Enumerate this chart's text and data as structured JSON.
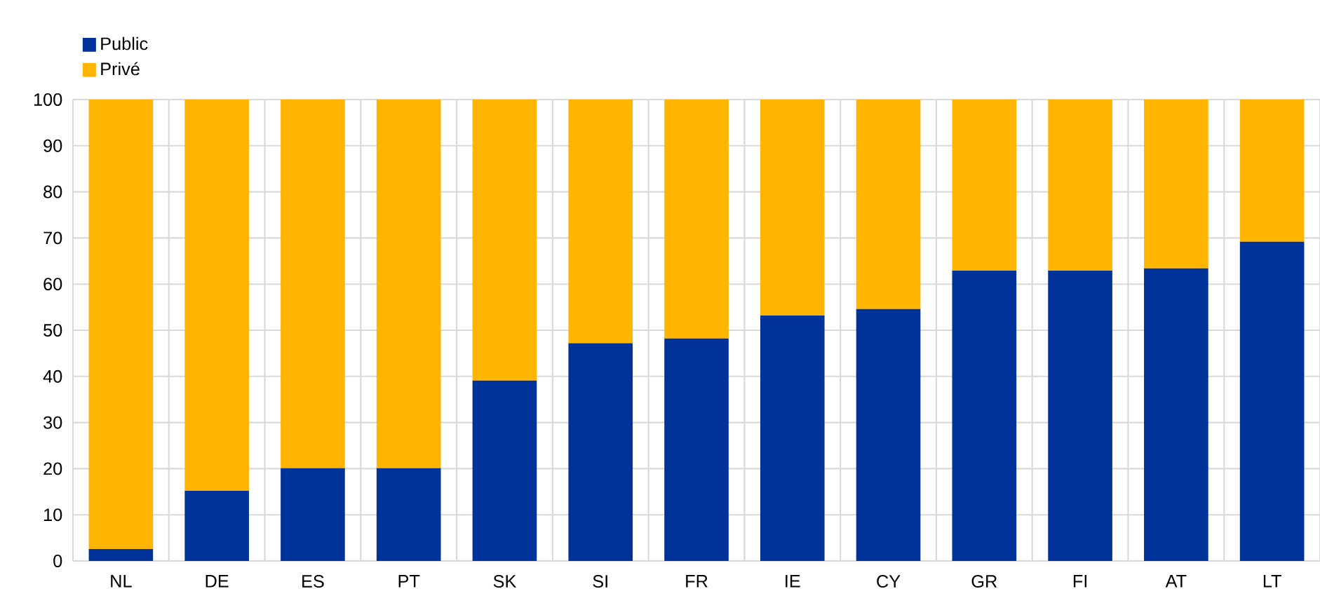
{
  "chart_data": {
    "type": "bar",
    "stacked": true,
    "categories": [
      "NL",
      "DE",
      "ES",
      "PT",
      "SK",
      "SI",
      "FR",
      "IE",
      "CY",
      "GR",
      "FI",
      "AT",
      "LT"
    ],
    "series": [
      {
        "name": "Public",
        "color": "#003399",
        "values": [
          2.6,
          15.2,
          20.1,
          20.1,
          39.1,
          47.2,
          48.2,
          53.2,
          54.6,
          62.9,
          62.9,
          63.4,
          69.2
        ]
      },
      {
        "name": "Privé",
        "color": "#ffb400",
        "values": [
          97.4,
          84.8,
          79.9,
          79.9,
          60.9,
          52.8,
          51.8,
          46.8,
          45.4,
          37.1,
          37.1,
          36.6,
          30.8
        ]
      }
    ],
    "ylim": [
      0,
      100
    ],
    "yticks": [
      0,
      10,
      20,
      30,
      40,
      50,
      60,
      70,
      80,
      90,
      100
    ],
    "grid": true,
    "legend": "top left"
  }
}
